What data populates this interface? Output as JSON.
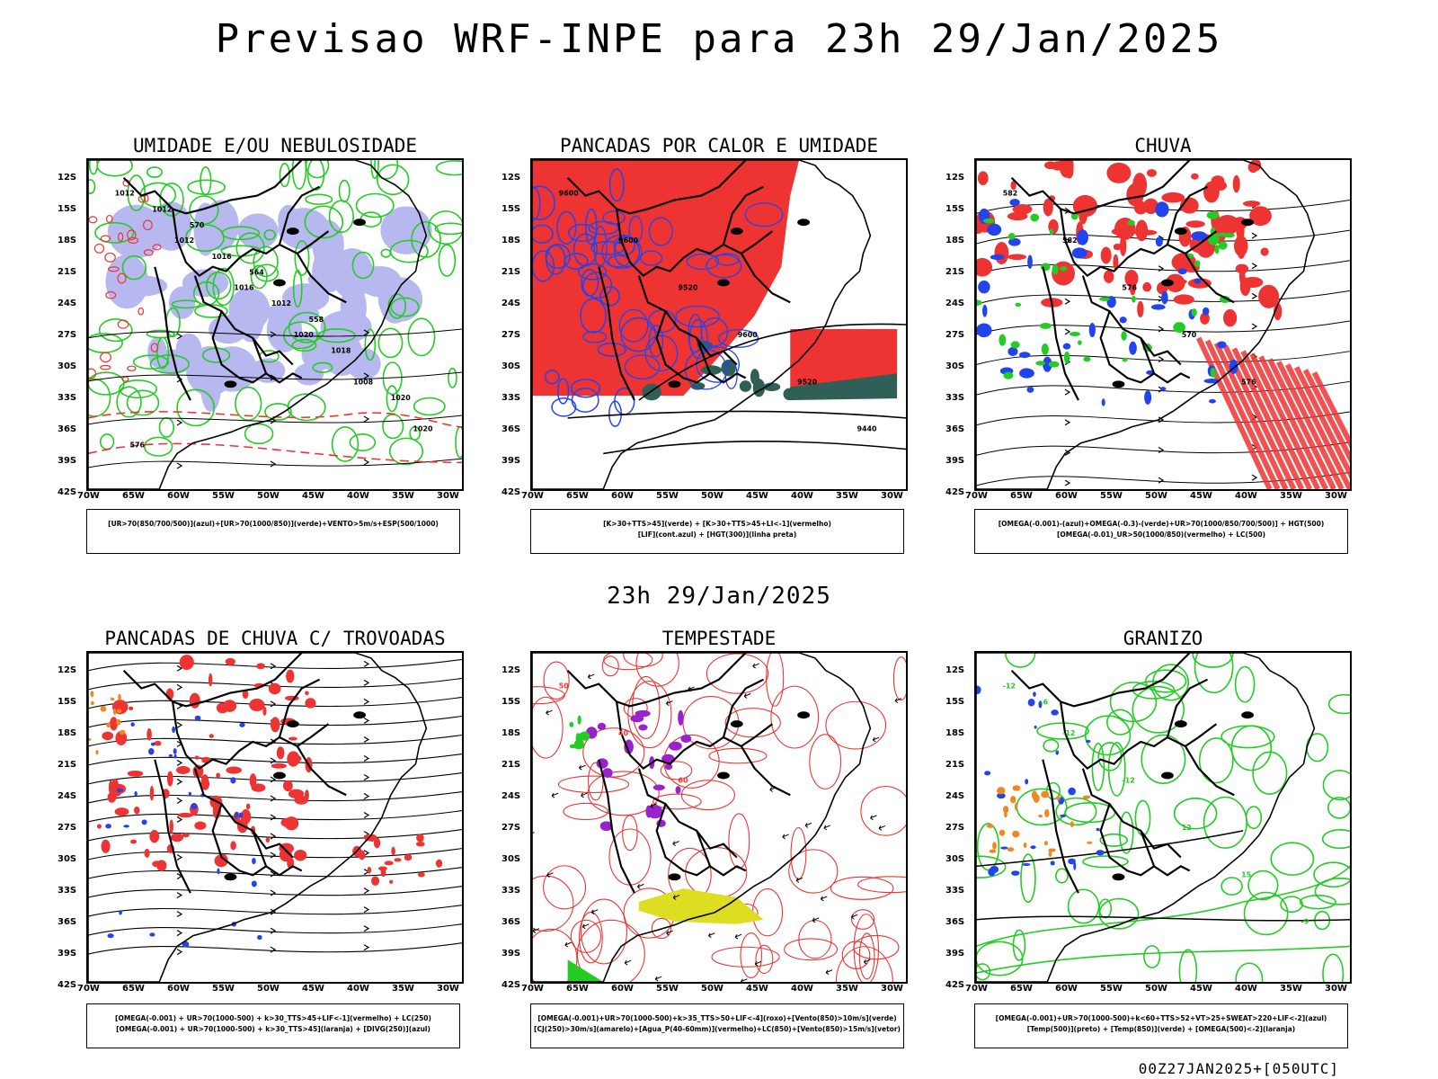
{
  "header": {
    "title": "Previsao WRF-INPE  para 23h 29/Jan/2025"
  },
  "middle": {
    "title": "23h 29/Jan/2025"
  },
  "footer": {
    "stamp": "00Z27JAN2025+[050UTC]"
  },
  "axes": {
    "lat": [
      "12S",
      "15S",
      "18S",
      "21S",
      "24S",
      "27S",
      "30S",
      "33S",
      "36S",
      "39S",
      "42S"
    ],
    "lon": [
      "70W",
      "65W",
      "60W",
      "55W",
      "50W",
      "45W",
      "40W",
      "35W",
      "30W"
    ]
  },
  "panels": [
    {
      "title": "UMIDADE E/OU NEBULOSIDADE",
      "legend": [
        "[UR>70(850/700/500)](azul)+[UR>70(1000/850)](verde)+VENTO>5m/s+ESP(500/1000)"
      ],
      "labels": [
        "1012",
        "1012",
        "1016",
        "1020",
        "1008",
        "1020",
        "1012",
        "1016",
        "1012",
        "1018",
        "1020",
        "576",
        "570",
        "564",
        "558"
      ]
    },
    {
      "title": "PANCADAS POR CALOR E UMIDADE",
      "legend": [
        "[K>30+TTS>45](verde) + [K>30+TTS>45+LI<-1](vermelho)",
        "[LIF](cont.azul) + [HGT(300)](linha preta)"
      ],
      "labels": [
        "9600",
        "9600",
        "9520",
        "9600",
        "9520",
        "9440"
      ]
    },
    {
      "title": "CHUVA",
      "legend": [
        "[OMEGA(-0.001)-(azul)+OMEGA(-0.3)-(verde)+UR>70(1000/850/700/500)] + HGT(500)",
        "[OMEGA(-0.01)_UR>50(1000/850)(vermelho) + LC(500)"
      ],
      "labels": [
        "582",
        "582",
        "576",
        "570",
        "576"
      ]
    },
    {
      "title": "PANCADAS DE CHUVA C/ TROVOADAS",
      "legend": [
        "[OMEGA(-0.001) + UR>70(1000-500) + k>30_TTS>45+LIF<-1](vermelho) + LC(250)",
        "[OMEGA(-0.001) + UR>70(1000-500) + k>30_TTS>45](laranja) + [DIVG(250)](azul)"
      ],
      "labels": []
    },
    {
      "title": "TEMPESTADE",
      "legend": [
        "[OMEGA(-0.001)+UR>70(1000-500)+k>35_TTS>50+LIF<-4](roxo)+[Vento(850)>10m/s](verde)",
        "[CJ(250)>30m/s](amarelo)+[Agua_P(40-60mm)](vermelho)+LC(850)+[Vento(850)>15m/s](vetor)"
      ],
      "labels": [
        "50",
        "40",
        "60"
      ]
    },
    {
      "title": "GRANIZO",
      "legend": [
        "[OMEGA(-0.001)+UR>70(1000-500)+k<60+TTS>52+VT>25+SWEAT>220+LIF<-2](azul)",
        "[Temp(500)](preto) + [Temp(850)](verde) + [OMEGA(500)<-2](laranja)"
      ],
      "labels": [
        "-12",
        "-12",
        "-12",
        "12",
        "15",
        "-9",
        "-6"
      ]
    }
  ],
  "colors": {
    "blue": "#2244ee",
    "green": "#22cc22",
    "red": "#ee3333",
    "lavender": "#b8b8f0",
    "yellow": "#dddd22",
    "purple": "#9922cc",
    "orange": "#ee8822",
    "teal": "#2f5f57"
  }
}
